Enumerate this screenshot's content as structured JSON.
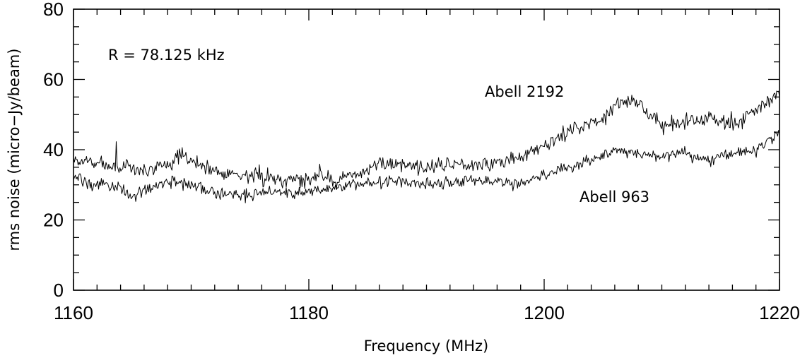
{
  "chart_data": {
    "type": "line",
    "xlabel": "Frequency (MHz)",
    "ylabel": "rms noise (micro−Jy/beam)",
    "xlim": [
      1160,
      1220
    ],
    "ylim": [
      0,
      80
    ],
    "xticks": [
      1160,
      1180,
      1200,
      1220
    ],
    "xtick_labels": [
      "1160",
      "1180",
      "1200",
      "1220"
    ],
    "yticks": [
      0,
      20,
      40,
      60,
      80
    ],
    "ytick_labels": [
      "0",
      "20",
      "40",
      "60",
      "80"
    ],
    "x_minor_step": 2,
    "y_minor_step": 5,
    "grid": false,
    "annotation": "R = 78.125 kHz",
    "series": [
      {
        "name": "Abell 2192",
        "x": [
          1160,
          1162,
          1164,
          1166,
          1168,
          1169,
          1170,
          1172,
          1174,
          1176,
          1178,
          1180,
          1181,
          1182,
          1184,
          1186,
          1188,
          1190,
          1192,
          1194,
          1196,
          1198,
          1200,
          1202,
          1204,
          1205,
          1206,
          1207,
          1208,
          1209,
          1210,
          1212,
          1214,
          1216,
          1218,
          1220
        ],
        "values": [
          37,
          36,
          35,
          34,
          36,
          38,
          37,
          34,
          33,
          32,
          32,
          31,
          34,
          31,
          33,
          36,
          36,
          35,
          36,
          36,
          36,
          38,
          41,
          45,
          48,
          49,
          53,
          54,
          53,
          50,
          47,
          48,
          49,
          47,
          51,
          56
        ],
        "noise": 1.5
      },
      {
        "name": "Abell 963",
        "x": [
          1160,
          1162,
          1164,
          1165,
          1166,
          1168,
          1170,
          1172,
          1174,
          1176,
          1178,
          1180,
          1182,
          1184,
          1186,
          1188,
          1190,
          1192,
          1194,
          1196,
          1198,
          1200,
          1202,
          1204,
          1206,
          1208,
          1210,
          1212,
          1214,
          1216,
          1218,
          1220
        ],
        "values": [
          32,
          30,
          29,
          27,
          28,
          31,
          30,
          28,
          27,
          28,
          28,
          28,
          29,
          30,
          31,
          31,
          30,
          31,
          31,
          31,
          30,
          33,
          35,
          37,
          40,
          39,
          38,
          39,
          37,
          39,
          40,
          45
        ],
        "noise": 1.2
      }
    ],
    "series_labels": [
      "Abell 2192",
      "Abell 963"
    ]
  }
}
